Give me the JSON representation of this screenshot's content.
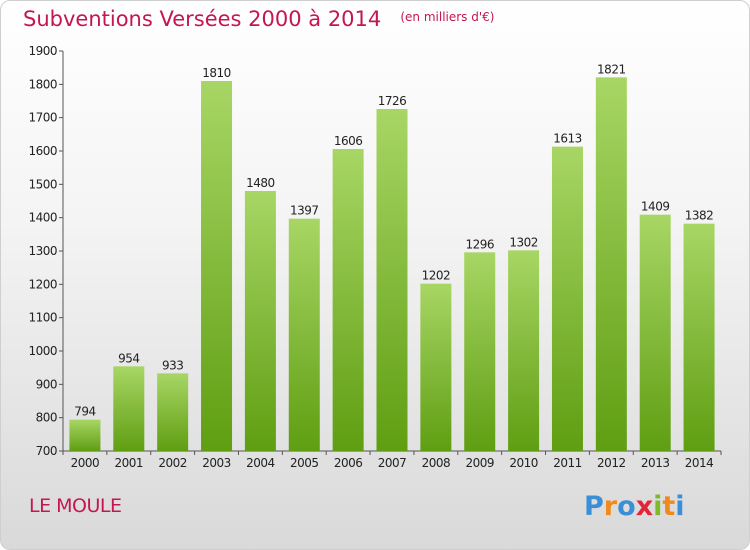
{
  "title": "Subventions Versées 2000 à 2014",
  "unit": "(en milliers d'€)",
  "commune": "LE MOULE",
  "logo": {
    "letters": [
      "P",
      "r",
      "o",
      "x",
      "i",
      "t",
      "i"
    ],
    "colors": [
      "#3a8fd6",
      "#f08a1c",
      "#3a8fd6",
      "#e2263a",
      "#7dbb2b",
      "#f08a1c",
      "#3a8fd6"
    ]
  },
  "colors": {
    "bar_top": "#a8d665",
    "bar_bottom": "#5f9e12",
    "title": "#c4174f"
  },
  "chart_data": {
    "type": "bar",
    "title": "Subventions Versées 2000 à 2014",
    "subtitle": "(en milliers d'€)",
    "categories": [
      "2000",
      "2001",
      "2002",
      "2003",
      "2004",
      "2005",
      "2006",
      "2007",
      "2008",
      "2009",
      "2010",
      "2011",
      "2012",
      "2013",
      "2014"
    ],
    "values": [
      794,
      954,
      933,
      1810,
      1480,
      1397,
      1606,
      1726,
      1202,
      1296,
      1302,
      1613,
      1821,
      1409,
      1382
    ],
    "value_labels": [
      "794",
      "954",
      "933",
      "1810",
      "1480",
      "1397",
      "1606",
      "1726",
      "1202",
      "1296",
      "1302",
      "1613",
      "1821",
      "1409",
      "1382"
    ],
    "ylim": [
      700,
      1900
    ],
    "yticks": [
      "700",
      "800",
      "900",
      "1000",
      "1100",
      "1200",
      "1300",
      "1400",
      "1500",
      "1600",
      "1700",
      "1800",
      "1900"
    ],
    "grid": false,
    "legend": "none"
  }
}
